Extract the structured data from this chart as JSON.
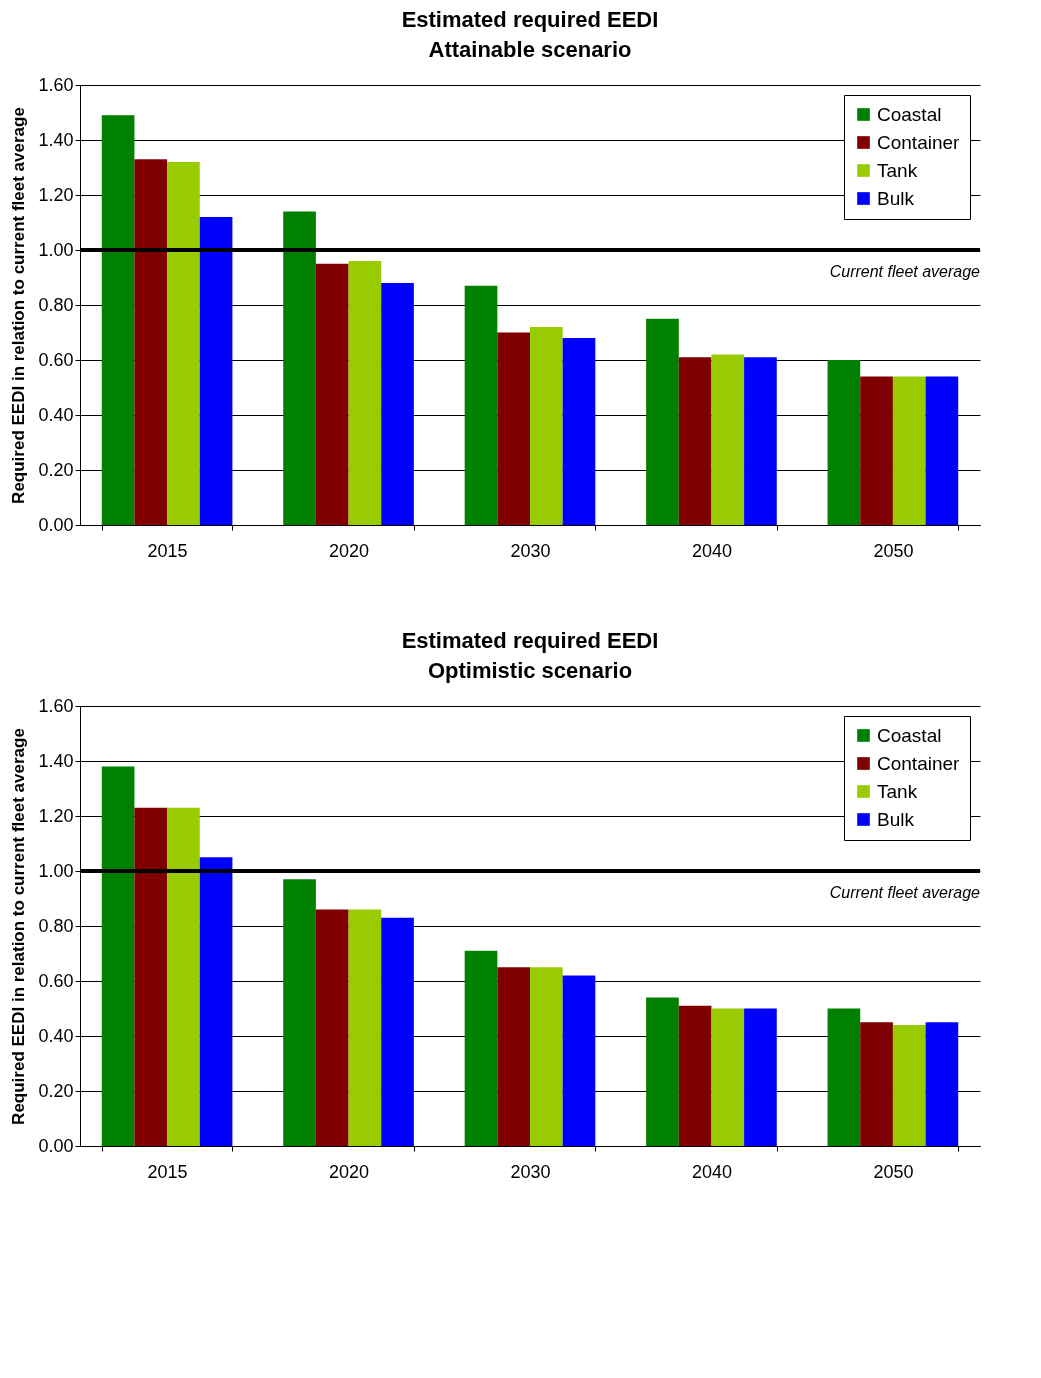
{
  "chart_data": [
    {
      "type": "bar",
      "title": "Estimated required EEDI",
      "subtitle": "Attainable scenario",
      "ylabel": "Required EEDI in relation to current fleet average",
      "categories": [
        "2015",
        "2020",
        "2030",
        "2040",
        "2050"
      ],
      "series": [
        {
          "name": "Coastal",
          "color": "#008000",
          "values": [
            1.49,
            1.14,
            0.87,
            0.75,
            0.6
          ]
        },
        {
          "name": "Container",
          "color": "#800000",
          "values": [
            1.33,
            0.95,
            0.7,
            0.61,
            0.54
          ]
        },
        {
          "name": "Tank",
          "color": "#99cc00",
          "values": [
            1.32,
            0.96,
            0.72,
            0.62,
            0.54
          ]
        },
        {
          "name": "Bulk",
          "color": "#0000ff",
          "values": [
            1.12,
            0.88,
            0.68,
            0.61,
            0.54
          ]
        }
      ],
      "ylim": [
        0,
        1.6
      ],
      "yticks": [
        {
          "value": 0,
          "label": "0.00"
        },
        {
          "value": 0.2,
          "label": "0.20"
        },
        {
          "value": 0.4,
          "label": "0.40"
        },
        {
          "value": 0.6,
          "label": "0.60"
        },
        {
          "value": 0.8,
          "label": "0.80"
        },
        {
          "value": 1,
          "label": "1.00"
        },
        {
          "value": 1.2,
          "label": "1.20"
        },
        {
          "value": 1.4,
          "label": "1.40"
        },
        {
          "value": 1.6,
          "label": "1.60"
        }
      ],
      "ref_lines": [
        {
          "axis": "y",
          "value": 1,
          "label": "Current fleet average",
          "color": "#000000"
        }
      ],
      "grid": "y",
      "legend": "top right"
    },
    {
      "type": "bar",
      "title": "Estimated required EEDI",
      "subtitle": "Optimistic scenario",
      "ylabel": "Required EEDI in relation to current fleet average",
      "categories": [
        "2015",
        "2020",
        "2030",
        "2040",
        "2050"
      ],
      "series": [
        {
          "name": "Coastal",
          "color": "#008000",
          "values": [
            1.38,
            0.97,
            0.71,
            0.54,
            0.5
          ]
        },
        {
          "name": "Container",
          "color": "#800000",
          "values": [
            1.23,
            0.86,
            0.65,
            0.51,
            0.45
          ]
        },
        {
          "name": "Tank",
          "color": "#99cc00",
          "values": [
            1.23,
            0.86,
            0.65,
            0.5,
            0.44
          ]
        },
        {
          "name": "Bulk",
          "color": "#0000ff",
          "values": [
            1.05,
            0.83,
            0.62,
            0.5,
            0.45
          ]
        }
      ],
      "ylim": [
        0,
        1.6
      ],
      "yticks": [
        {
          "value": 0,
          "label": "0.00"
        },
        {
          "value": 0.2,
          "label": "0.20"
        },
        {
          "value": 0.4,
          "label": "0.40"
        },
        {
          "value": 0.6,
          "label": "0.60"
        },
        {
          "value": 0.8,
          "label": "0.80"
        },
        {
          "value": 1,
          "label": "1.00"
        },
        {
          "value": 1.2,
          "label": "1.20"
        },
        {
          "value": 1.4,
          "label": "1.40"
        },
        {
          "value": 1.6,
          "label": "1.60"
        }
      ],
      "ref_lines": [
        {
          "axis": "y",
          "value": 1,
          "label": "Current fleet average",
          "color": "#000000"
        }
      ],
      "grid": "y",
      "legend": "top right"
    }
  ]
}
